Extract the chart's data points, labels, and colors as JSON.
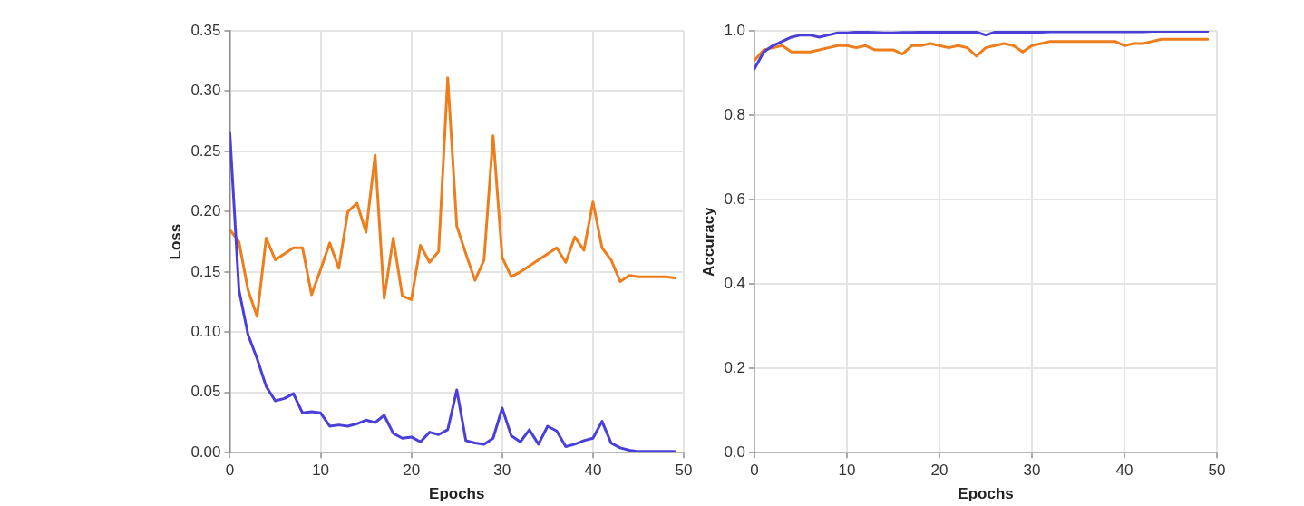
{
  "chart_data": [
    {
      "type": "line",
      "xlabel": "Epochs",
      "ylabel": "Loss",
      "x": [
        0,
        1,
        2,
        3,
        4,
        5,
        6,
        7,
        8,
        9,
        10,
        11,
        12,
        13,
        14,
        15,
        16,
        17,
        18,
        19,
        20,
        21,
        22,
        23,
        24,
        25,
        26,
        27,
        28,
        29,
        30,
        31,
        32,
        33,
        34,
        35,
        36,
        37,
        38,
        39,
        40,
        41,
        42,
        43,
        44,
        45,
        46,
        47,
        48,
        49
      ],
      "series": [
        {
          "color": "#4a3fd8",
          "values": [
            0.265,
            0.135,
            0.098,
            0.078,
            0.055,
            0.043,
            0.045,
            0.049,
            0.033,
            0.034,
            0.033,
            0.022,
            0.023,
            0.022,
            0.024,
            0.027,
            0.025,
            0.031,
            0.016,
            0.012,
            0.013,
            0.009,
            0.017,
            0.015,
            0.019,
            0.052,
            0.01,
            0.008,
            0.007,
            0.012,
            0.037,
            0.014,
            0.009,
            0.019,
            0.007,
            0.022,
            0.018,
            0.005,
            0.007,
            0.01,
            0.012,
            0.026,
            0.008,
            0.004,
            0.002,
            0.001,
            0.001,
            0.001,
            0.001,
            0.001
          ]
        },
        {
          "color": "#ee7d1c",
          "values": [
            0.185,
            0.175,
            0.135,
            0.113,
            0.178,
            0.16,
            0.165,
            0.17,
            0.17,
            0.131,
            0.152,
            0.174,
            0.153,
            0.2,
            0.207,
            0.183,
            0.247,
            0.128,
            0.178,
            0.13,
            0.127,
            0.172,
            0.158,
            0.167,
            0.311,
            0.188,
            0.165,
            0.143,
            0.16,
            0.263,
            0.162,
            0.146,
            0.15,
            0.155,
            0.16,
            0.165,
            0.17,
            0.158,
            0.179,
            0.168,
            0.208,
            0.17,
            0.16,
            0.142,
            0.147,
            0.146,
            0.146,
            0.146,
            0.146,
            0.145
          ]
        }
      ],
      "xlim": [
        0,
        50
      ],
      "xticks": [
        0,
        10,
        20,
        30,
        40,
        50
      ],
      "ylim": [
        0,
        0.35
      ],
      "yticks": [
        {
          "value": 0,
          "label": "0.00"
        },
        {
          "value": 0.05,
          "label": "0.05"
        },
        {
          "value": 0.1,
          "label": "0.10"
        },
        {
          "value": 0.15,
          "label": "0.15"
        },
        {
          "value": 0.2,
          "label": "0.20"
        },
        {
          "value": 0.25,
          "label": "0.25"
        },
        {
          "value": 0.3,
          "label": "0.30"
        },
        {
          "value": 0.35,
          "label": "0.35"
        }
      ],
      "grid": true,
      "marker": "none",
      "line_style": "solid"
    },
    {
      "type": "line",
      "xlabel": "Epochs",
      "ylabel": "Accuracy",
      "x": [
        0,
        1,
        2,
        3,
        4,
        5,
        6,
        7,
        8,
        9,
        10,
        11,
        12,
        13,
        14,
        15,
        16,
        17,
        18,
        19,
        20,
        21,
        22,
        23,
        24,
        25,
        26,
        27,
        28,
        29,
        30,
        31,
        32,
        33,
        34,
        35,
        36,
        37,
        38,
        39,
        40,
        41,
        42,
        43,
        44,
        45,
        46,
        47,
        48,
        49
      ],
      "series": [
        {
          "color": "#4a3fd8",
          "values": [
            0.91,
            0.95,
            0.965,
            0.975,
            0.985,
            0.99,
            0.99,
            0.985,
            0.99,
            0.995,
            0.995,
            0.997,
            0.997,
            0.996,
            0.995,
            0.995,
            0.996,
            0.996,
            0.997,
            0.997,
            0.997,
            0.997,
            0.997,
            0.997,
            0.997,
            0.99,
            0.997,
            0.997,
            0.997,
            0.997,
            0.997,
            0.997,
            0.998,
            0.998,
            0.998,
            0.998,
            0.998,
            0.998,
            0.998,
            0.998,
            0.998,
            0.998,
            0.998,
            0.999,
            0.999,
            0.999,
            0.999,
            0.999,
            0.999,
            0.999
          ]
        },
        {
          "color": "#ee7d1c",
          "values": [
            0.93,
            0.955,
            0.96,
            0.965,
            0.95,
            0.95,
            0.95,
            0.955,
            0.96,
            0.965,
            0.965,
            0.96,
            0.965,
            0.955,
            0.955,
            0.955,
            0.945,
            0.965,
            0.965,
            0.97,
            0.965,
            0.96,
            0.965,
            0.96,
            0.94,
            0.96,
            0.965,
            0.97,
            0.965,
            0.95,
            0.965,
            0.97,
            0.975,
            0.975,
            0.975,
            0.975,
            0.975,
            0.975,
            0.975,
            0.975,
            0.965,
            0.97,
            0.97,
            0.975,
            0.98,
            0.98,
            0.98,
            0.98,
            0.98,
            0.98
          ]
        }
      ],
      "xlim": [
        0,
        50
      ],
      "xticks": [
        0,
        10,
        20,
        30,
        40,
        50
      ],
      "ylim": [
        0,
        1
      ],
      "yticks": [
        {
          "value": 0,
          "label": "0.0"
        },
        {
          "value": 0.2,
          "label": "0.2"
        },
        {
          "value": 0.4,
          "label": "0.4"
        },
        {
          "value": 0.6,
          "label": "0.6"
        },
        {
          "value": 0.8,
          "label": "0.8"
        },
        {
          "value": 1,
          "label": "1.0"
        }
      ],
      "grid": true,
      "marker": "none",
      "line_style": "solid"
    }
  ]
}
